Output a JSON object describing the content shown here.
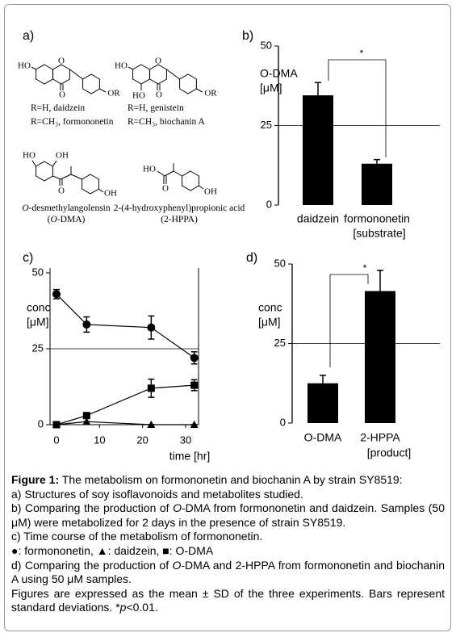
{
  "panel_labels": [
    "a)",
    "b)",
    "c)",
    "d)"
  ],
  "structures": [
    {
      "atoms": [
        "HO",
        "O",
        "O",
        "OR"
      ],
      "caption": [
        [
          {
            "text": "R=H, daidzein"
          }
        ],
        [
          {
            "text": "R=CH₃, formononetin"
          }
        ]
      ]
    },
    {
      "atoms": [
        "HO",
        "O",
        "HO",
        "O",
        "OR"
      ],
      "caption": [
        [
          {
            "text": "R=H, genistein"
          }
        ],
        [
          {
            "text": "R=CH₃, biochanin A"
          }
        ]
      ]
    },
    {
      "atoms": [
        "HO",
        "OH",
        "O",
        "OH"
      ],
      "caption": [
        [
          {
            "text": "O",
            "italic": true
          },
          {
            "text": "-desmethylangolensin"
          }
        ],
        [
          {
            "text": "("
          },
          {
            "text": "O",
            "italic": true
          },
          {
            "text": "-DMA)"
          }
        ]
      ]
    },
    {
      "atoms": [
        "HO",
        "O",
        "OH"
      ],
      "caption": [
        [
          {
            "text": "2-(4-hydroxyphenyl)propionic acid"
          }
        ],
        [
          {
            "text": "(2-HPPA)"
          }
        ]
      ]
    }
  ],
  "chart_data": [
    {
      "type": "bar",
      "ylabel": [
        "O-DMA",
        "[μM]"
      ],
      "xlabel": "[substrate]",
      "categories": [
        "daidzein",
        "formononetin"
      ],
      "values": [
        34.5,
        13
      ],
      "errors": [
        4,
        1.3
      ],
      "color": "#000000",
      "ylim": [
        0,
        50
      ],
      "yticks": [
        0,
        25,
        50
      ],
      "hline": 25,
      "significance": "*"
    },
    {
      "type": "line",
      "ylabel": [
        "conc",
        "[μM]"
      ],
      "xlabel": "time [hr]",
      "x": [
        0,
        7,
        22,
        32
      ],
      "xlim": [
        -1.5,
        33
      ],
      "xticks": [
        0,
        10,
        20,
        30
      ],
      "ylim": [
        0,
        50
      ],
      "yticks": [
        0,
        25,
        50
      ],
      "hline": 25,
      "series": [
        {
          "marker": "circle",
          "color": "#000000",
          "values": [
            43,
            33,
            32,
            22
          ],
          "errors": [
            1.5,
            2.5,
            3.8,
            2
          ]
        },
        {
          "marker": "triangle",
          "color": "#000000",
          "values": [
            0,
            1,
            0,
            0
          ],
          "errors": [
            0,
            0,
            0,
            0
          ]
        },
        {
          "marker": "square",
          "color": "#000000",
          "values": [
            0,
            3,
            12,
            13
          ],
          "errors": [
            0,
            0.6,
            3,
            1.8
          ]
        }
      ]
    },
    {
      "type": "bar",
      "ylabel": [
        "conc",
        "[μM]"
      ],
      "xlabel": "[product]",
      "categories": [
        "O-DMA",
        "2-HPPA"
      ],
      "values": [
        12.5,
        41.5
      ],
      "errors": [
        2.5,
        6.5
      ],
      "color": "#000000",
      "ylim": [
        0,
        50
      ],
      "yticks": [
        0,
        25,
        50
      ],
      "hline": 25,
      "significance": "*"
    }
  ],
  "caption": [
    [
      {
        "text": "Figure 1:",
        "bold": true
      },
      {
        "text": " The metabolism on formononetin and biochanin A by strain SY8519:"
      }
    ],
    [
      {
        "text": "a) Structures of soy isoflavonoids and metabolites studied."
      }
    ],
    [
      {
        "text": "b) Comparing the production of "
      },
      {
        "text": "O",
        "italic": true
      },
      {
        "text": "-DMA from formononetin and daidzein. Samples (50 μM) were metabolized for 2 days in the presence of strain SY8519."
      }
    ],
    [
      {
        "text": "c) Time course of the metabolism of formononetin."
      }
    ],
    [
      {
        "text": "●: formononetin, ▲: daidzein, ■: O-DMA"
      }
    ],
    [
      {
        "text": "d) Comparing the production of "
      },
      {
        "text": "O",
        "italic": true
      },
      {
        "text": "-DMA and 2-HPPA from formononetin and biochanin A using 50 μM samples."
      }
    ],
    [
      {
        "text": "Figures are expressed as the mean ± SD of the three experiments. Bars represent standard deviations. *"
      },
      {
        "text": "p",
        "italic": true
      },
      {
        "text": "<0.01."
      }
    ]
  ]
}
